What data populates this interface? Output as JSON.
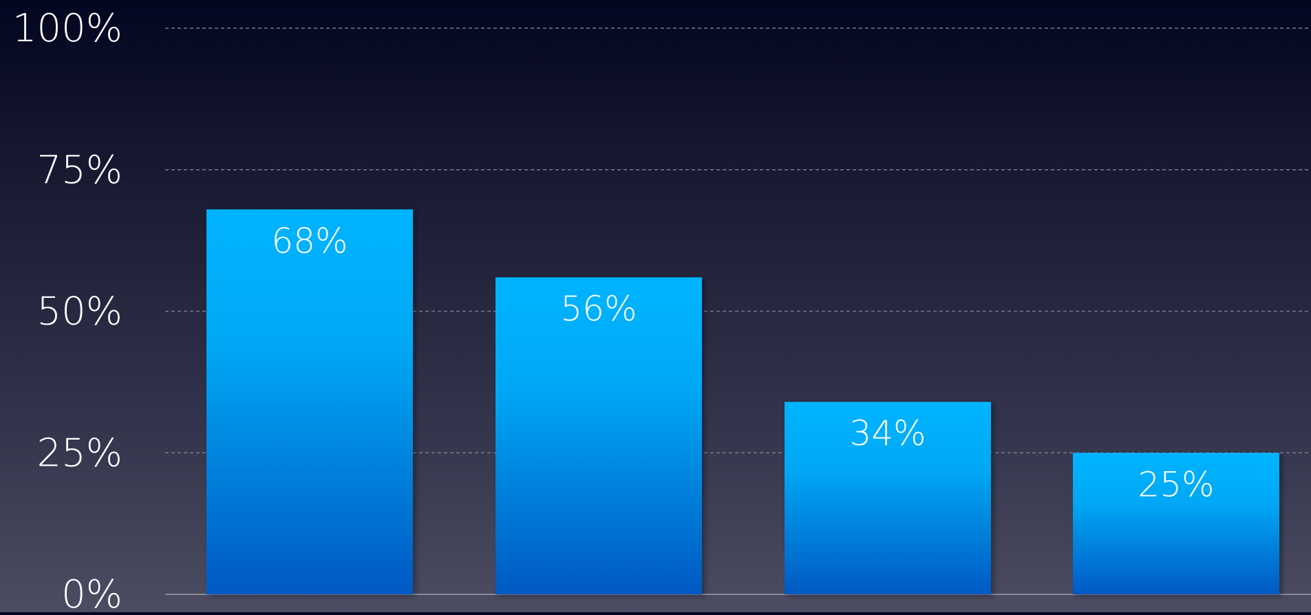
{
  "chart_data": {
    "type": "bar",
    "categories": [
      "",
      "",
      "",
      ""
    ],
    "values": [
      68,
      56,
      34,
      25
    ],
    "data_labels": [
      "68%",
      "56%",
      "34%",
      "25%"
    ],
    "title": "",
    "xlabel": "",
    "ylabel": "",
    "ylim": [
      0,
      100
    ],
    "yticks": [
      0,
      25,
      50,
      75,
      100
    ],
    "ytick_labels": [
      "0%",
      "25%",
      "50%",
      "75%",
      "100%"
    ],
    "grid": true,
    "grid_style": "dashed",
    "legend": "none",
    "colors": {
      "bar_top": "#00b4ff",
      "bar_bottom": "#0059c3",
      "text": "#ffffff",
      "grid": "#7a7a8c",
      "axis": "#8a8a98"
    }
  }
}
